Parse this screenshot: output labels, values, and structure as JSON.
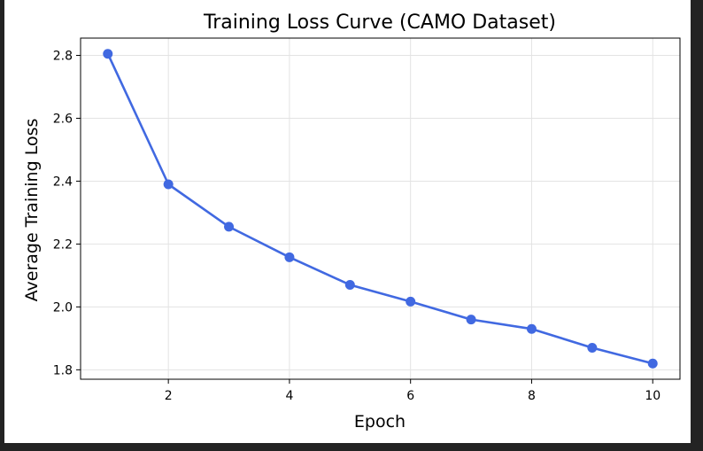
{
  "chart_data": {
    "type": "line",
    "title": "Training Loss Curve (CAMO Dataset)",
    "xlabel": "Epoch",
    "ylabel": "Average Training Loss",
    "x": [
      1,
      2,
      3,
      4,
      5,
      6,
      7,
      8,
      9,
      10
    ],
    "series": [
      {
        "values": [
          2.805,
          2.39,
          2.255,
          2.158,
          2.07,
          2.017,
          1.96,
          1.93,
          1.87,
          1.82
        ],
        "color": "#4169e1",
        "marker": "circle"
      }
    ],
    "xticks": [
      2,
      4,
      6,
      8,
      10
    ],
    "yticks": [
      1.8,
      2.0,
      2.2,
      2.4,
      2.6,
      2.8
    ],
    "xlim": [
      0.55,
      10.45
    ],
    "ylim": [
      1.77,
      2.855
    ],
    "grid": true
  }
}
